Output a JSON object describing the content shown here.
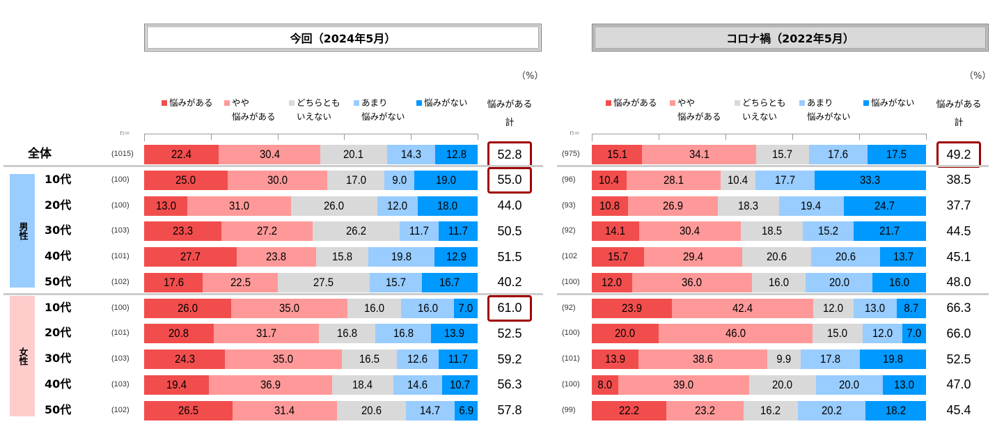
{
  "unit": "（%）",
  "n_label": "n=",
  "total_header": [
    "悩みがある",
    "計"
  ],
  "legend": [
    {
      "label": [
        "悩みがある"
      ],
      "color": "#f24d4d"
    },
    {
      "label": [
        "やや",
        "悩みがある"
      ],
      "color": "#ff9999"
    },
    {
      "label": [
        "どちらとも",
        "いえない"
      ],
      "color": "#d9d9d9"
    },
    {
      "label": [
        "あまり",
        "悩みがない"
      ],
      "color": "#99ccff"
    },
    {
      "label": [
        "悩みがない"
      ],
      "color": "#0099ff"
    }
  ],
  "groups": {
    "male": "男性",
    "female": "女性"
  },
  "row_labels": [
    "全体",
    "10代",
    "20代",
    "30代",
    "40代",
    "50代",
    "10代",
    "20代",
    "30代",
    "40代",
    "50代"
  ],
  "chart_data": [
    {
      "type": "bar",
      "stacked": true,
      "orientation": "horizontal",
      "title": "今回（2024年5月）",
      "series_names": [
        "悩みがある",
        "やや悩みがある",
        "どちらともいえない",
        "あまり悩みがない",
        "悩みがない"
      ],
      "rows": [
        {
          "n": "(1015)",
          "values": [
            22.4,
            30.4,
            20.1,
            14.3,
            12.8
          ],
          "total": "52.8",
          "highlight": true
        },
        {
          "n": "(100)",
          "values": [
            25.0,
            30.0,
            17.0,
            9.0,
            19.0
          ],
          "total": "55.0",
          "highlight": true
        },
        {
          "n": "(100)",
          "values": [
            13.0,
            31.0,
            26.0,
            12.0,
            18.0
          ],
          "total": "44.0"
        },
        {
          "n": "(103)",
          "values": [
            23.3,
            27.2,
            26.2,
            11.7,
            11.7
          ],
          "total": "50.5"
        },
        {
          "n": "(101)",
          "values": [
            27.7,
            23.8,
            15.8,
            19.8,
            12.9
          ],
          "total": "51.5"
        },
        {
          "n": "(102)",
          "values": [
            17.6,
            22.5,
            27.5,
            15.7,
            16.7
          ],
          "total": "40.2"
        },
        {
          "n": "(100)",
          "values": [
            26.0,
            35.0,
            16.0,
            16.0,
            7.0
          ],
          "total": "61.0",
          "highlight": true
        },
        {
          "n": "(101)",
          "values": [
            20.8,
            31.7,
            16.8,
            16.8,
            13.9
          ],
          "total": "52.5"
        },
        {
          "n": "(103)",
          "values": [
            24.3,
            35.0,
            16.5,
            12.6,
            11.7
          ],
          "total": "59.2"
        },
        {
          "n": "(103)",
          "values": [
            19.4,
            36.9,
            18.4,
            14.6,
            10.7
          ],
          "total": "56.3"
        },
        {
          "n": "(102)",
          "values": [
            26.5,
            31.4,
            20.6,
            14.7,
            6.9
          ],
          "total": "57.8"
        }
      ]
    },
    {
      "type": "bar",
      "stacked": true,
      "orientation": "horizontal",
      "title": "コロナ禍（2022年5月）",
      "series_names": [
        "悩みがある",
        "やや悩みがある",
        "どちらともいえない",
        "あまり悩みがない",
        "悩みがない"
      ],
      "rows": [
        {
          "n": "(975)",
          "values": [
            15.1,
            34.1,
            15.7,
            17.6,
            17.5
          ],
          "total": "49.2",
          "highlight": true
        },
        {
          "n": "(96)",
          "values": [
            10.4,
            28.1,
            10.4,
            17.7,
            33.3
          ],
          "total": "38.5"
        },
        {
          "n": "(93)",
          "values": [
            10.8,
            26.9,
            18.3,
            19.4,
            24.7
          ],
          "total": "37.7"
        },
        {
          "n": "(92)",
          "values": [
            14.1,
            30.4,
            18.5,
            15.2,
            21.7
          ],
          "total": "44.5"
        },
        {
          "n": "(102",
          "values": [
            15.7,
            29.4,
            20.6,
            20.6,
            13.7
          ],
          "total": "45.1"
        },
        {
          "n": "(100)",
          "values": [
            12.0,
            36.0,
            16.0,
            20.0,
            16.0
          ],
          "total": "48.0"
        },
        {
          "n": "(92)",
          "values": [
            23.9,
            42.4,
            12.0,
            13.0,
            8.7
          ],
          "total": "66.3"
        },
        {
          "n": "(100)",
          "values": [
            20.0,
            46.0,
            15.0,
            12.0,
            7.0
          ],
          "total": "66.0"
        },
        {
          "n": "(101)",
          "values": [
            13.9,
            38.6,
            9.9,
            17.8,
            19.8
          ],
          "total": "52.5"
        },
        {
          "n": "(100)",
          "values": [
            8.0,
            39.0,
            20.0,
            20.0,
            13.0
          ],
          "total": "47.0"
        },
        {
          "n": "(99)",
          "values": [
            22.2,
            23.2,
            16.2,
            20.2,
            18.2
          ],
          "total": "45.4"
        }
      ]
    }
  ]
}
